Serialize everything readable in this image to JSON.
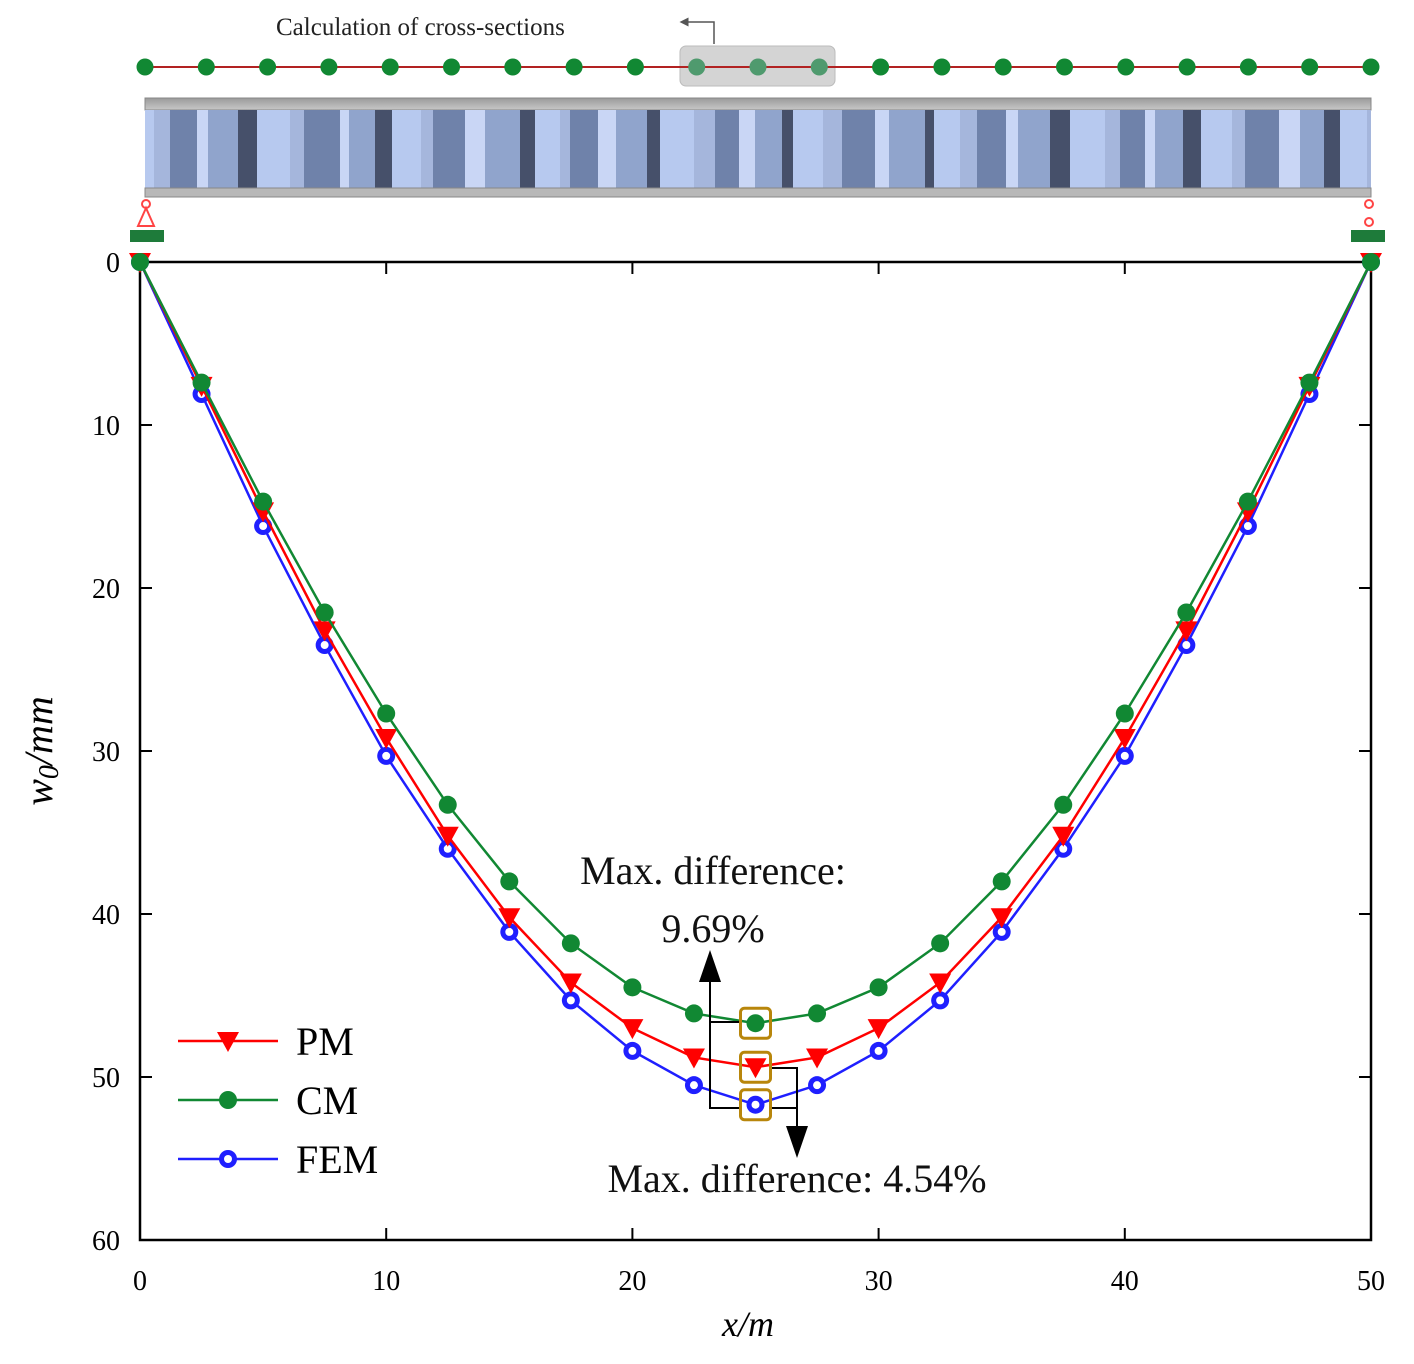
{
  "colors": {
    "pm": "#ff0000",
    "cm": "#118833",
    "fem": "#1f1fff",
    "beam_line": "#b22222",
    "highlight_box": "#b8860b",
    "support": "#1e7b3a",
    "pin": "#ff4444"
  },
  "beam_diagram": {
    "label": "Calculation of cross-sections",
    "node_count": 21,
    "highlighted_nodes": [
      9,
      10,
      11
    ]
  },
  "chart_data": {
    "type": "line",
    "xlabel_main": "x",
    "xlabel_unit": "/m",
    "ylabel_main": "w",
    "ylabel_sub": "0",
    "ylabel_unit": "/mm",
    "xlim": [
      0,
      50
    ],
    "ylim": [
      0,
      60
    ],
    "y_inverted": true,
    "xticks": [
      0,
      10,
      20,
      30,
      40,
      50
    ],
    "yticks": [
      0,
      10,
      20,
      30,
      40,
      50,
      60
    ],
    "x": [
      0,
      2.5,
      5,
      7.5,
      10,
      12.5,
      15,
      17.5,
      20,
      22.5,
      25,
      27.5,
      30,
      32.5,
      35,
      37.5,
      40,
      42.5,
      45,
      47.5,
      50
    ],
    "series": [
      {
        "name": "PM",
        "marker": "triangle-down",
        "values": [
          0,
          7.6,
          15.3,
          22.6,
          29.2,
          35.2,
          40.2,
          44.2,
          47.0,
          48.8,
          49.4,
          48.8,
          47.0,
          44.2,
          40.2,
          35.2,
          29.2,
          22.6,
          15.3,
          7.6,
          0
        ]
      },
      {
        "name": "CM",
        "marker": "circle-filled",
        "values": [
          0,
          7.4,
          14.7,
          21.5,
          27.7,
          33.3,
          38.0,
          41.8,
          44.5,
          46.1,
          46.7,
          46.1,
          44.5,
          41.8,
          38.0,
          33.3,
          27.7,
          21.5,
          14.7,
          7.4,
          0
        ]
      },
      {
        "name": "FEM",
        "marker": "circle-open",
        "values": [
          0,
          8.1,
          16.2,
          23.5,
          30.3,
          36.0,
          41.1,
          45.3,
          48.4,
          50.5,
          51.7,
          50.5,
          48.4,
          45.3,
          41.1,
          36.0,
          30.3,
          23.5,
          16.2,
          8.1,
          0
        ]
      }
    ],
    "annotations": {
      "upper_line1": "Max. difference:",
      "upper_line2": "9.69%",
      "lower": "Max. difference: 4.54%",
      "highlight_x": 25
    },
    "legend_position": "bottom-left"
  }
}
